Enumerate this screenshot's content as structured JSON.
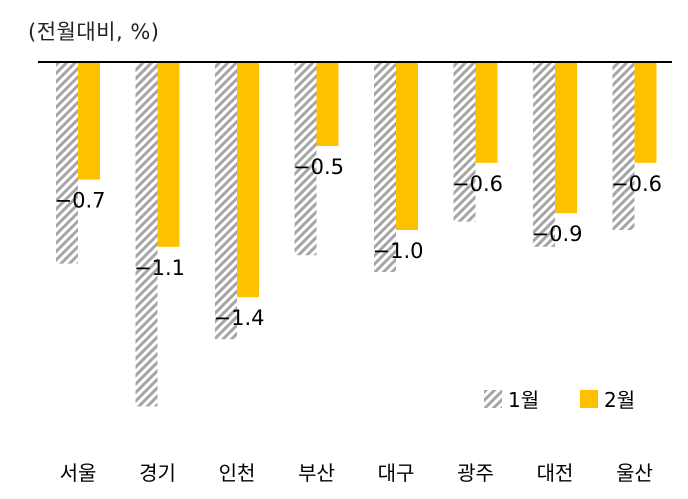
{
  "chart_data": {
    "type": "bar",
    "unit_label": "(전월대비, %)",
    "categories": [
      "서울",
      "경기",
      "인천",
      "부산",
      "대구",
      "광주",
      "대전",
      "울산"
    ],
    "series": [
      {
        "name": "1월",
        "values": [
          -1.2,
          -2.05,
          -1.65,
          -1.15,
          -1.25,
          -0.95,
          -1.1,
          -1.0
        ],
        "pattern": "hatched-gray",
        "color": "#a6a6a6"
      },
      {
        "name": "2월",
        "values": [
          -0.7,
          -1.1,
          -1.4,
          -0.5,
          -1.0,
          -0.6,
          -0.9,
          -0.6
        ],
        "pattern": "solid",
        "color": "#ffc000"
      }
    ],
    "data_labels": [
      "−0.7",
      "−1.1",
      "−1.4",
      "−0.5",
      "−1.0",
      "−0.6",
      "−0.9",
      "−0.6"
    ],
    "ylim": [
      -2.1,
      0
    ],
    "legend_position": "bottom-right",
    "grid": false
  }
}
